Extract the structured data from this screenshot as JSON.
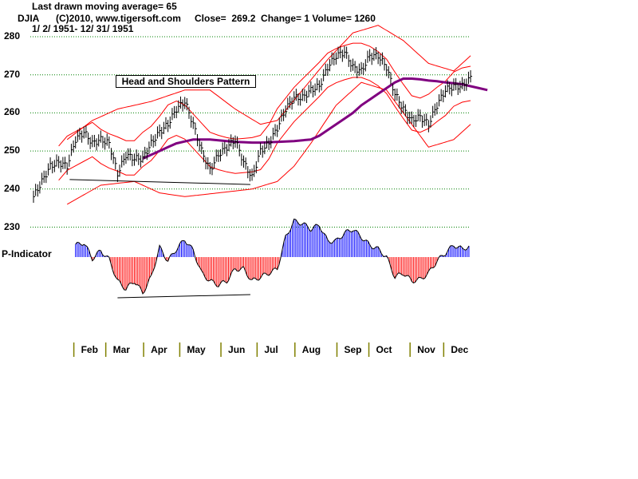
{
  "header": {
    "ma_line": "Last drawn moving average= 65",
    "symbol": "DJIA",
    "copyright": "(C)2010, www.tigersoft.com",
    "stats": "Close=  269.2  Change= 1 Volume= 1260",
    "date_range": "1/ 2/ 1951- 12/ 31/ 1951"
  },
  "chart_data": {
    "type": "line",
    "title": "DJIA",
    "annotation": "Head and Shoulders Pattern",
    "indicator_label": "P-Indicator",
    "y_ticks": [
      "280",
      "270",
      "260",
      "250",
      "240",
      "230"
    ],
    "y_tick_values": [
      280,
      270,
      260,
      250,
      240,
      230
    ],
    "ylim": [
      230,
      280
    ],
    "months": [
      "Feb",
      "Mar",
      "Apr",
      "May",
      "Jun",
      "Jul",
      "Aug",
      "Sep",
      "Oct",
      "Nov",
      "Dec"
    ],
    "month_start_week": [
      4.8,
      8.6,
      13.1,
      17.4,
      22.3,
      26.6,
      31.1,
      36.1,
      39.9,
      44.8,
      48.8
    ],
    "weekly_close": [
      238,
      242,
      246,
      247,
      246,
      253,
      255,
      252,
      253,
      252,
      244,
      249,
      248,
      248,
      252,
      255,
      257,
      261,
      263,
      257,
      250,
      245,
      249,
      251,
      253,
      247,
      243,
      250,
      252,
      256,
      261,
      264,
      264,
      266,
      267,
      272,
      275,
      276,
      272,
      271,
      275,
      275,
      272,
      265,
      261,
      258,
      259,
      257,
      262,
      266,
      267,
      267,
      269.2
    ],
    "moving_average_65": {
      "start_week": 13,
      "values": [
        248,
        249,
        250,
        251,
        252,
        252.5,
        253,
        253,
        253,
        252.8,
        252.6,
        252.4,
        252.3,
        252.2,
        252.2,
        252.3,
        252.4,
        252.5,
        252.6,
        252.8,
        253,
        254,
        255.5,
        257,
        258.5,
        260,
        262,
        263.5,
        265,
        266.5,
        268,
        269,
        269,
        268.8,
        268.5,
        268.3,
        268,
        267.8,
        267.5,
        267,
        266.5,
        266
      ]
    },
    "upper_band": [
      [
        4,
        253
      ],
      [
        7,
        258
      ],
      [
        10,
        261
      ],
      [
        14,
        263
      ],
      [
        18,
        266
      ],
      [
        21,
        266
      ],
      [
        24,
        261
      ],
      [
        27,
        257
      ],
      [
        29,
        258
      ],
      [
        32,
        266
      ],
      [
        35,
        274
      ],
      [
        38,
        281
      ],
      [
        41,
        283
      ],
      [
        44,
        279
      ],
      [
        47,
        273
      ],
      [
        50,
        271
      ],
      [
        52,
        275
      ]
    ],
    "lower_band": [
      [
        4,
        236
      ],
      [
        8,
        241
      ],
      [
        12,
        242
      ],
      [
        15,
        239
      ],
      [
        18,
        238
      ],
      [
        22,
        239
      ],
      [
        26,
        240
      ],
      [
        29,
        242
      ],
      [
        31,
        246
      ],
      [
        33,
        252
      ],
      [
        36,
        262
      ],
      [
        39,
        268
      ],
      [
        42,
        266
      ],
      [
        45,
        257
      ],
      [
        47,
        251
      ],
      [
        50,
        253
      ],
      [
        52,
        257
      ]
    ],
    "p_indicator": {
      "start_week": 5,
      "values": [
        15,
        18,
        -2,
        8,
        -3,
        -30,
        -40,
        -30,
        -45,
        -25,
        12,
        -5,
        10,
        22,
        8,
        -20,
        -30,
        -35,
        -30,
        -15,
        -15,
        -30,
        -25,
        -20,
        -15,
        25,
        45,
        42,
        35,
        40,
        20,
        20,
        30,
        35,
        25,
        15,
        10,
        0,
        -25,
        -20,
        -30,
        -28,
        -20,
        -5,
        5,
        15,
        10,
        14
      ]
    },
    "price_trendline": [
      [
        4.3,
        242.5
      ],
      [
        25.8,
        241.2
      ]
    ],
    "indicator_trendline": [
      [
        10,
        -51
      ],
      [
        25.8,
        -47
      ]
    ],
    "colors": {
      "band": "#ff0000",
      "ma": "#800080",
      "pos": "#0000ff",
      "neg": "#ff0000",
      "grid": "#008000",
      "tick": "#808000"
    }
  }
}
